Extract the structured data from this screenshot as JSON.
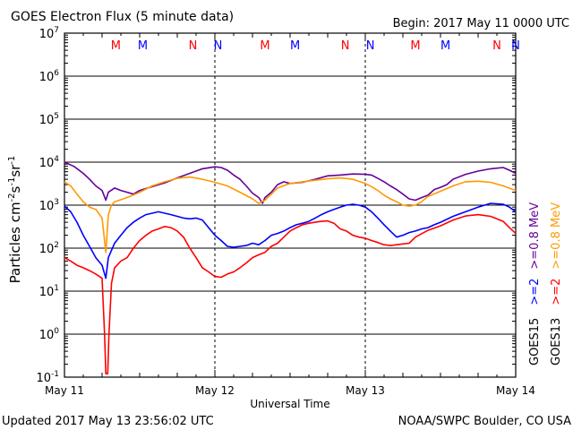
{
  "header": {
    "title": "GOES Electron Flux (5 minute data)",
    "begin": "Begin: 2017 May 11 0000 UTC"
  },
  "footer": {
    "updated": "Updated 2017 May 13 23:56:02 UTC",
    "credit": "NOAA/SWPC Boulder, CO USA"
  },
  "chart_data": {
    "type": "line",
    "title": "GOES Electron Flux (5 minute data)",
    "xlabel": "Universal Time",
    "ylabel": "Particles cm-2s-1sr-1",
    "y_scale": "log",
    "ylim": [
      0.1,
      10000000
    ],
    "xlim": [
      0,
      72
    ],
    "x_unit": "hours since 2017 May 11 0000 UTC",
    "x_ticks": [
      {
        "x": 0,
        "label": "May 11"
      },
      {
        "x": 24,
        "label": "May 12"
      },
      {
        "x": 48,
        "label": "May 13"
      },
      {
        "x": 72,
        "label": "May 14"
      }
    ],
    "y_ticks": [
      {
        "value": 0.1,
        "base": "10",
        "exp": "-1"
      },
      {
        "value": 1,
        "base": "10",
        "exp": "0"
      },
      {
        "value": 10,
        "base": "10",
        "exp": "1"
      },
      {
        "value": 100,
        "base": "10",
        "exp": "2"
      },
      {
        "value": 1000,
        "base": "10",
        "exp": "3"
      },
      {
        "value": 10000,
        "base": "10",
        "exp": "4"
      },
      {
        "value": 100000,
        "base": "10",
        "exp": "5"
      },
      {
        "value": 1000000,
        "base": "10",
        "exp": "6"
      },
      {
        "value": 10000000,
        "base": "10",
        "exp": "7"
      }
    ],
    "threshold": 1000,
    "markers": [
      {
        "x": 8.2,
        "label": "M",
        "color": "#ff0000"
      },
      {
        "x": 12.5,
        "label": "M",
        "color": "#0000ff"
      },
      {
        "x": 20.5,
        "label": "N",
        "color": "#ff0000"
      },
      {
        "x": 24.5,
        "label": "N",
        "color": "#0000ff"
      },
      {
        "x": 32.0,
        "label": "M",
        "color": "#ff0000"
      },
      {
        "x": 36.8,
        "label": "M",
        "color": "#0000ff"
      },
      {
        "x": 44.8,
        "label": "N",
        "color": "#ff0000"
      },
      {
        "x": 48.8,
        "label": "N",
        "color": "#0000ff"
      },
      {
        "x": 56.0,
        "label": "M",
        "color": "#ff0000"
      },
      {
        "x": 60.8,
        "label": "M",
        "color": "#0000ff"
      },
      {
        "x": 69.0,
        "label": "N",
        "color": "#ff0000"
      },
      {
        "x": 72.0,
        "label": "N",
        "color": "#0000ff"
      }
    ],
    "legend": [
      {
        "satellite": "GOES15",
        "energy": ">=2",
        "energy2": ">=0.8 MeV",
        "color_2": "#0000ff",
        "color_08": "#660099"
      },
      {
        "satellite": "GOES13",
        "energy": ">=2",
        "energy2": ">=0.8 MeV",
        "color_2": "#ff0000",
        "color_08": "#ff9900"
      }
    ],
    "series": [
      {
        "name": "GOES15 >=0.8 MeV",
        "color": "#660099",
        "points": [
          [
            0,
            10000
          ],
          [
            1.5,
            8000
          ],
          [
            3,
            5500
          ],
          [
            4,
            4000
          ],
          [
            5,
            2800
          ],
          [
            6,
            2200
          ],
          [
            6.6,
            1300
          ],
          [
            7,
            2000
          ],
          [
            8,
            2500
          ],
          [
            9,
            2200
          ],
          [
            10,
            2000
          ],
          [
            11,
            1800
          ],
          [
            12,
            2200
          ],
          [
            14,
            2700
          ],
          [
            16,
            3300
          ],
          [
            18,
            4300
          ],
          [
            20,
            5500
          ],
          [
            22,
            7000
          ],
          [
            24,
            7800
          ],
          [
            25,
            7500
          ],
          [
            26,
            6500
          ],
          [
            27,
            5000
          ],
          [
            28,
            4000
          ],
          [
            29,
            2800
          ],
          [
            30,
            1900
          ],
          [
            31,
            1500
          ],
          [
            31.6,
            1100
          ],
          [
            32,
            1500
          ],
          [
            33,
            2000
          ],
          [
            34,
            3000
          ],
          [
            35,
            3500
          ],
          [
            36,
            3200
          ],
          [
            38,
            3400
          ],
          [
            40,
            4000
          ],
          [
            42,
            4800
          ],
          [
            44,
            5000
          ],
          [
            46,
            5300
          ],
          [
            48,
            5200
          ],
          [
            49,
            5000
          ],
          [
            50,
            4200
          ],
          [
            51,
            3500
          ],
          [
            52,
            2800
          ],
          [
            53,
            2300
          ],
          [
            54,
            1800
          ],
          [
            55,
            1400
          ],
          [
            56,
            1300
          ],
          [
            57,
            1500
          ],
          [
            58,
            1700
          ],
          [
            59,
            2300
          ],
          [
            60,
            2600
          ],
          [
            61,
            3000
          ],
          [
            62,
            4000
          ],
          [
            64,
            5200
          ],
          [
            66,
            6200
          ],
          [
            68,
            7000
          ],
          [
            70,
            7500
          ],
          [
            71,
            6500
          ],
          [
            72,
            5500
          ]
        ]
      },
      {
        "name": "GOES13 >=0.8 MeV",
        "color": "#ff9900",
        "points": [
          [
            0,
            3500
          ],
          [
            1,
            2800
          ],
          [
            2,
            1800
          ],
          [
            3,
            1200
          ],
          [
            4,
            900
          ],
          [
            5,
            800
          ],
          [
            6,
            500
          ],
          [
            6.6,
            80
          ],
          [
            7,
            600
          ],
          [
            7.5,
            1000
          ],
          [
            8,
            1200
          ],
          [
            10,
            1500
          ],
          [
            12,
            2000
          ],
          [
            14,
            2800
          ],
          [
            16,
            3500
          ],
          [
            18,
            4200
          ],
          [
            20,
            4500
          ],
          [
            22,
            4000
          ],
          [
            24,
            3400
          ],
          [
            26,
            2800
          ],
          [
            28,
            2000
          ],
          [
            30,
            1400
          ],
          [
            31,
            1100
          ],
          [
            32,
            1300
          ],
          [
            33,
            1800
          ],
          [
            34,
            2500
          ],
          [
            36,
            3200
          ],
          [
            38,
            3500
          ],
          [
            40,
            3800
          ],
          [
            42,
            4100
          ],
          [
            44,
            4300
          ],
          [
            46,
            4000
          ],
          [
            48,
            3200
          ],
          [
            49,
            2700
          ],
          [
            50,
            2200
          ],
          [
            51,
            1700
          ],
          [
            52,
            1400
          ],
          [
            53,
            1200
          ],
          [
            54,
            1000
          ],
          [
            55,
            950
          ],
          [
            56,
            1000
          ],
          [
            57,
            1200
          ],
          [
            58,
            1600
          ],
          [
            60,
            2100
          ],
          [
            62,
            2800
          ],
          [
            64,
            3500
          ],
          [
            66,
            3600
          ],
          [
            68,
            3400
          ],
          [
            70,
            2800
          ],
          [
            72,
            2200
          ]
        ]
      },
      {
        "name": "GOES15 >=2 MeV",
        "color": "#0000ff",
        "points": [
          [
            0,
            950
          ],
          [
            1,
            700
          ],
          [
            2,
            400
          ],
          [
            3,
            200
          ],
          [
            4,
            110
          ],
          [
            5,
            60
          ],
          [
            6,
            40
          ],
          [
            6.6,
            20
          ],
          [
            7,
            60
          ],
          [
            8,
            130
          ],
          [
            9,
            200
          ],
          [
            10,
            300
          ],
          [
            11,
            400
          ],
          [
            12,
            500
          ],
          [
            13,
            600
          ],
          [
            14,
            650
          ],
          [
            15,
            700
          ],
          [
            16,
            650
          ],
          [
            17,
            600
          ],
          [
            18,
            550
          ],
          [
            19,
            500
          ],
          [
            20,
            480
          ],
          [
            21,
            500
          ],
          [
            22,
            450
          ],
          [
            23,
            300
          ],
          [
            24,
            200
          ],
          [
            25,
            150
          ],
          [
            26,
            110
          ],
          [
            27,
            105
          ],
          [
            28,
            110
          ],
          [
            29,
            115
          ],
          [
            30,
            130
          ],
          [
            31,
            120
          ],
          [
            32,
            150
          ],
          [
            33,
            200
          ],
          [
            34,
            220
          ],
          [
            35,
            250
          ],
          [
            36,
            300
          ],
          [
            37,
            350
          ],
          [
            38,
            380
          ],
          [
            39,
            420
          ],
          [
            40,
            500
          ],
          [
            41,
            600
          ],
          [
            42,
            700
          ],
          [
            43,
            800
          ],
          [
            44,
            900
          ],
          [
            45,
            1000
          ],
          [
            46,
            1050
          ],
          [
            47,
            1000
          ],
          [
            48,
            900
          ],
          [
            49,
            700
          ],
          [
            50,
            500
          ],
          [
            51,
            350
          ],
          [
            52,
            250
          ],
          [
            53,
            180
          ],
          [
            54,
            200
          ],
          [
            55,
            230
          ],
          [
            56,
            250
          ],
          [
            57,
            280
          ],
          [
            58,
            300
          ],
          [
            59,
            350
          ],
          [
            60,
            400
          ],
          [
            62,
            550
          ],
          [
            64,
            700
          ],
          [
            66,
            900
          ],
          [
            68,
            1100
          ],
          [
            70,
            1050
          ],
          [
            71,
            900
          ],
          [
            72,
            700
          ]
        ]
      },
      {
        "name": "GOES13 >=2 MeV",
        "color": "#ff0000",
        "points": [
          [
            0,
            60
          ],
          [
            1,
            50
          ],
          [
            2,
            40
          ],
          [
            3,
            35
          ],
          [
            4,
            30
          ],
          [
            5,
            25
          ],
          [
            6,
            20
          ],
          [
            6.4,
            1
          ],
          [
            6.6,
            0.12
          ],
          [
            6.9,
            0.12
          ],
          [
            7.1,
            1
          ],
          [
            7.5,
            15
          ],
          [
            8,
            35
          ],
          [
            9,
            50
          ],
          [
            10,
            60
          ],
          [
            11,
            100
          ],
          [
            12,
            150
          ],
          [
            13,
            200
          ],
          [
            14,
            250
          ],
          [
            15,
            280
          ],
          [
            16,
            320
          ],
          [
            17,
            300
          ],
          [
            18,
            250
          ],
          [
            19,
            180
          ],
          [
            20,
            100
          ],
          [
            21,
            60
          ],
          [
            22,
            35
          ],
          [
            23,
            28
          ],
          [
            24,
            22
          ],
          [
            25,
            21
          ],
          [
            26,
            25
          ],
          [
            27,
            28
          ],
          [
            28,
            35
          ],
          [
            29,
            45
          ],
          [
            30,
            60
          ],
          [
            31,
            70
          ],
          [
            32,
            80
          ],
          [
            33,
            110
          ],
          [
            34,
            130
          ],
          [
            35,
            180
          ],
          [
            36,
            250
          ],
          [
            37,
            300
          ],
          [
            38,
            350
          ],
          [
            39,
            380
          ],
          [
            40,
            400
          ],
          [
            41,
            420
          ],
          [
            42,
            430
          ],
          [
            43,
            380
          ],
          [
            44,
            280
          ],
          [
            45,
            250
          ],
          [
            46,
            200
          ],
          [
            47,
            180
          ],
          [
            48,
            170
          ],
          [
            49,
            150
          ],
          [
            50,
            135
          ],
          [
            51,
            120
          ],
          [
            52,
            115
          ],
          [
            53,
            120
          ],
          [
            54,
            125
          ],
          [
            55,
            130
          ],
          [
            56,
            180
          ],
          [
            58,
            260
          ],
          [
            60,
            330
          ],
          [
            62,
            450
          ],
          [
            64,
            560
          ],
          [
            66,
            600
          ],
          [
            68,
            550
          ],
          [
            70,
            420
          ],
          [
            71,
            300
          ],
          [
            72,
            220
          ]
        ]
      }
    ]
  }
}
